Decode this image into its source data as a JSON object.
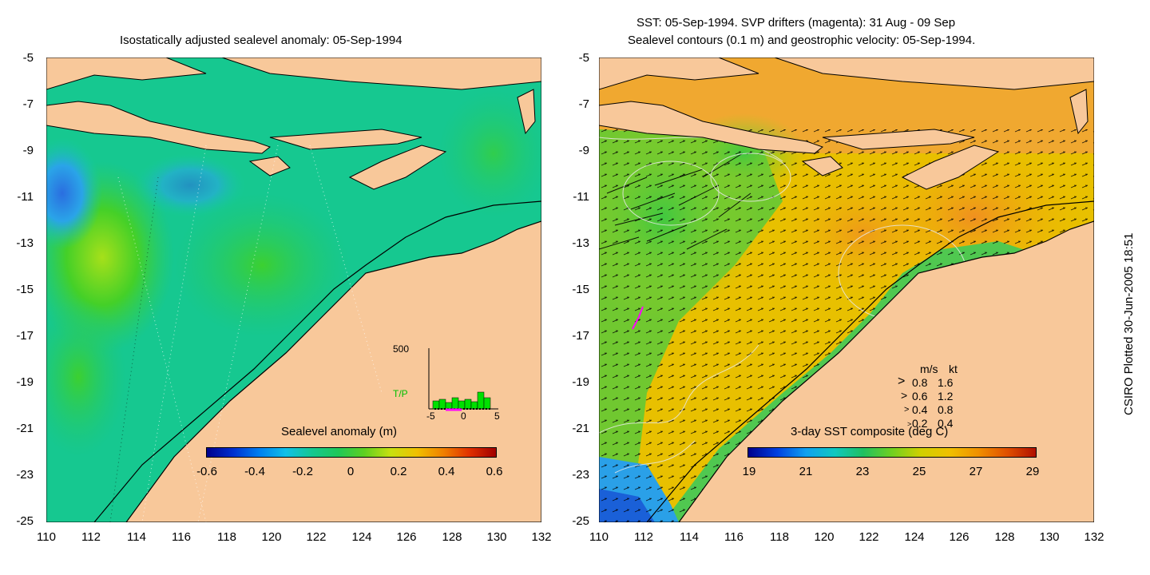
{
  "left_panel": {
    "title": "Isostatically adjusted sealevel anomaly: 05-Sep-1994",
    "colorbar": {
      "label": "Sealevel anomaly (m)",
      "ticks": [
        "-0.6",
        "-0.4",
        "-0.2",
        "0",
        "0.2",
        "0.4",
        "0.6"
      ]
    },
    "inset": {
      "ymax_label": "500",
      "series_label": "T/P",
      "xticks": [
        "-5",
        "0",
        "5"
      ]
    }
  },
  "right_panel": {
    "title_line1": "SST: 05-Sep-1994. SVP drifters (magenta): 31 Aug - 09 Sep",
    "title_line2": "Sealevel contours (0.1 m) and geostrophic velocity: 05-Sep-1994.",
    "colorbar": {
      "label": "3-day SST composite (deg C)",
      "ticks": [
        "19",
        "21",
        "23",
        "25",
        "27",
        "29"
      ]
    },
    "velocity_key": {
      "header_ms": "m/s",
      "header_kt": "kt",
      "rows": [
        {
          "ms": "0.8",
          "kt": "1.6"
        },
        {
          "ms": "0.6",
          "kt": "1.2"
        },
        {
          "ms": "0.4",
          "kt": "0.8"
        },
        {
          "ms": "0.2",
          "kt": "0.4"
        }
      ]
    }
  },
  "axes": {
    "y_ticks": [
      "-5",
      "-7",
      "-9",
      "-11",
      "-13",
      "-15",
      "-17",
      "-19",
      "-21",
      "-23",
      "-25"
    ],
    "x_ticks": [
      "110",
      "112",
      "114",
      "116",
      "118",
      "120",
      "122",
      "124",
      "126",
      "128",
      "130",
      "132"
    ]
  },
  "credit": "CSIRO Plotted 30-Jun-2005 18:51",
  "colors": {
    "land": "#f8c89a",
    "sla_background": "#16c890",
    "sst_background": "#f0b800"
  }
}
